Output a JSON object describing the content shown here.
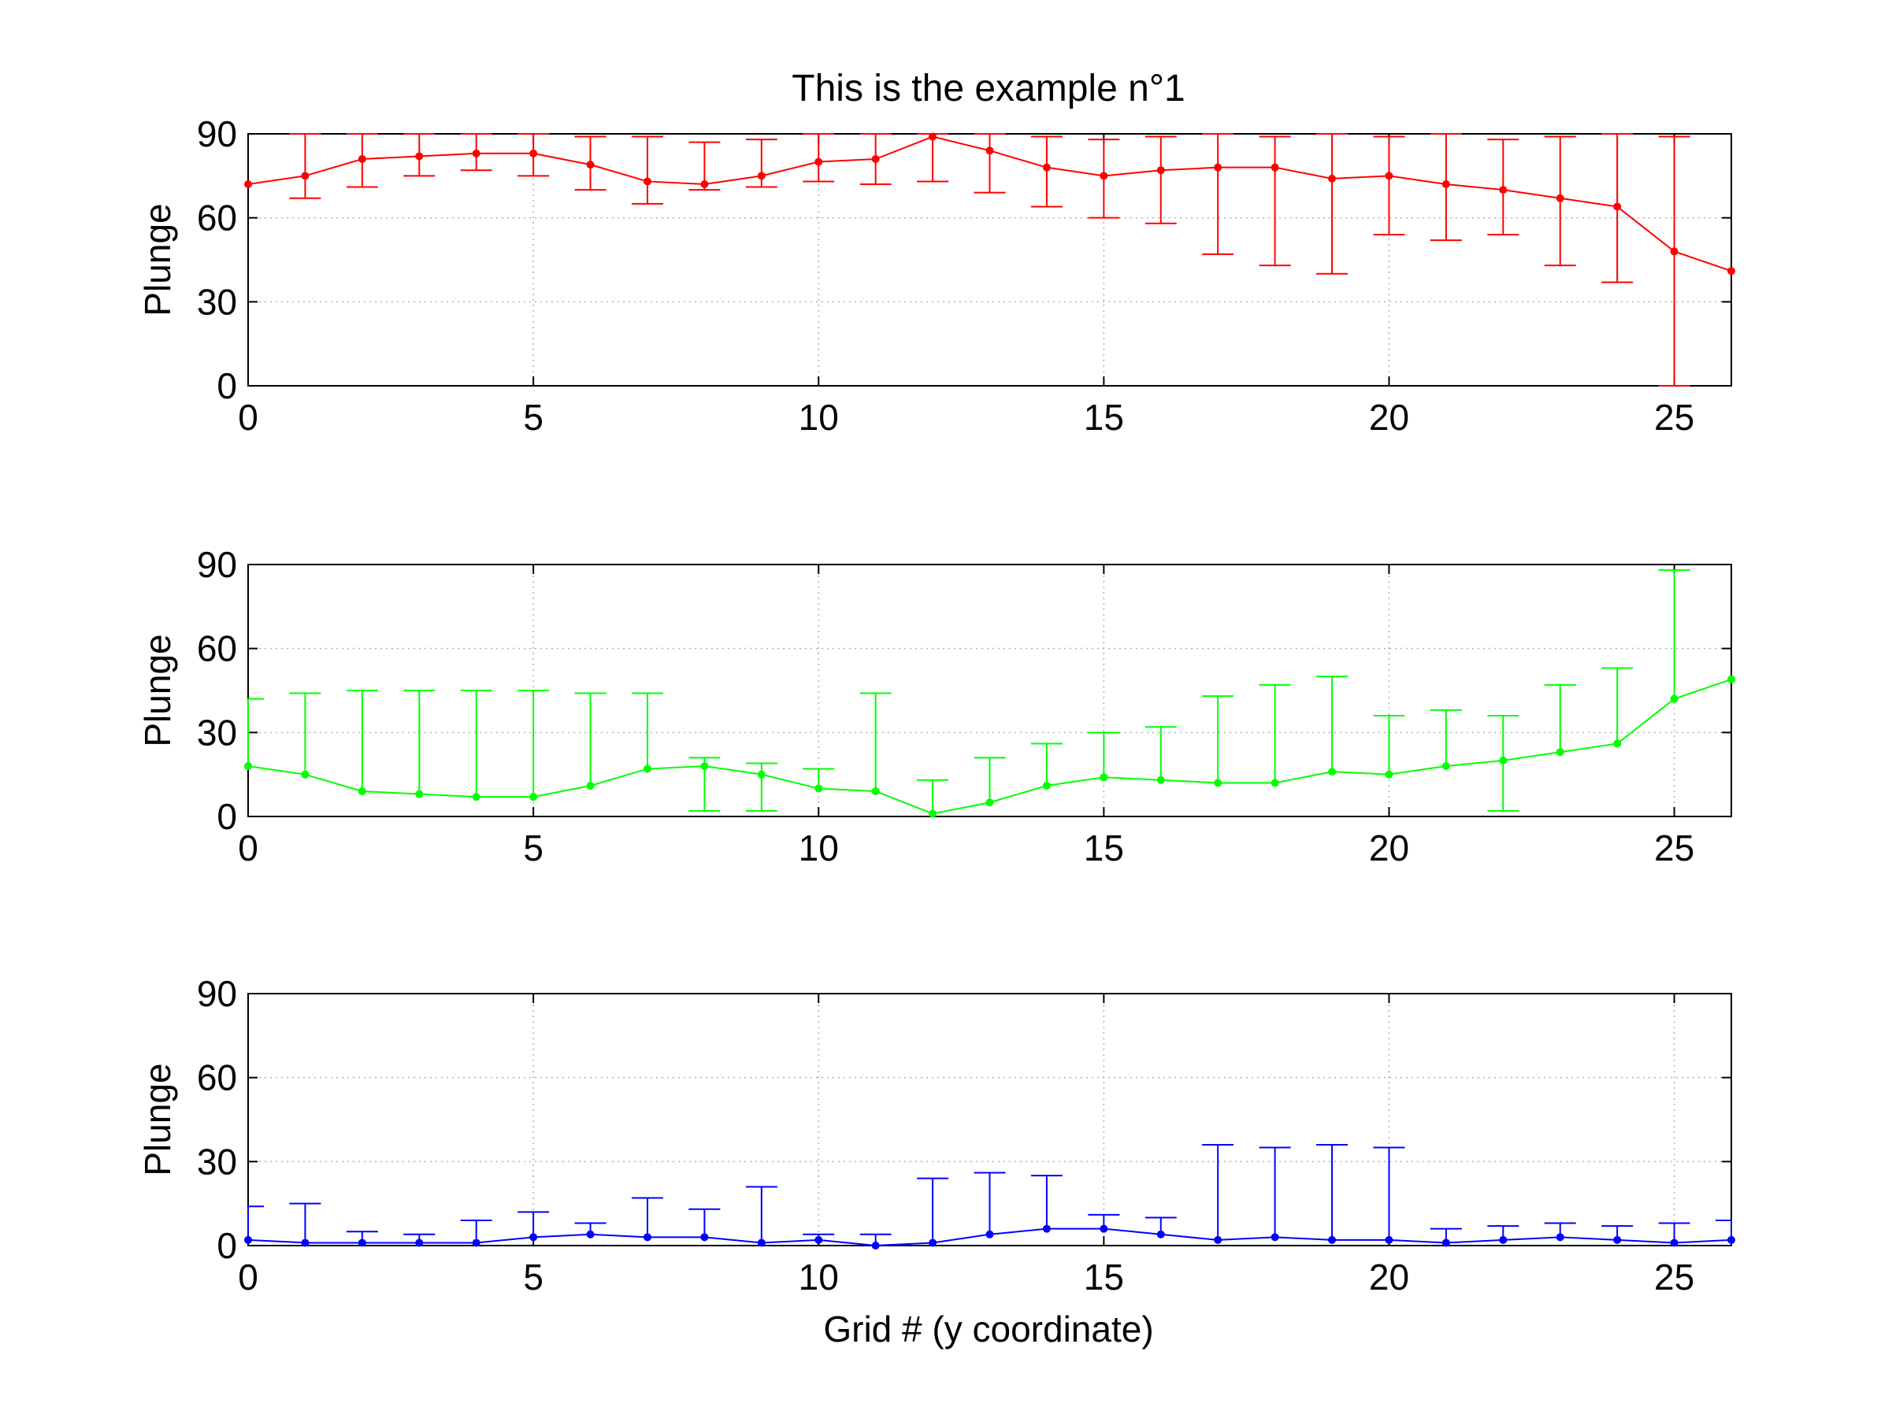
{
  "title": "This is the example n°1",
  "xlabel": "Grid # (y coordinate)",
  "chart_data": [
    {
      "type": "line",
      "ylabel": "Plunge",
      "color": "#ff0000",
      "xlim": [
        0,
        26
      ],
      "ylim": [
        0,
        90
      ],
      "xticks": [
        0,
        5,
        10,
        15,
        20,
        25
      ],
      "yticks": [
        0,
        30,
        60,
        90
      ],
      "grid": true,
      "x": [
        0,
        1,
        2,
        3,
        4,
        5,
        6,
        7,
        8,
        9,
        10,
        11,
        12,
        13,
        14,
        15,
        16,
        17,
        18,
        19,
        20,
        21,
        22,
        23,
        24,
        25,
        26
      ],
      "values": [
        72,
        75,
        81,
        82,
        83,
        83,
        79,
        73,
        72,
        75,
        80,
        81,
        89,
        84,
        78,
        75,
        77,
        78,
        78,
        74,
        75,
        72,
        70,
        67,
        64,
        48,
        41
      ],
      "err_low": [
        72,
        67,
        71,
        75,
        77,
        75,
        70,
        65,
        70,
        71,
        73,
        72,
        73,
        69,
        64,
        60,
        58,
        47,
        43,
        40,
        54,
        52,
        54,
        43,
        37,
        0,
        41
      ],
      "err_high": [
        72,
        90,
        90,
        90,
        90,
        90,
        89,
        89,
        87,
        88,
        90,
        90,
        90,
        90,
        89,
        88,
        89,
        90,
        89,
        90,
        89,
        90,
        88,
        89,
        90,
        89,
        41
      ]
    },
    {
      "type": "line",
      "ylabel": "Plunge",
      "color": "#00ff00",
      "xlim": [
        0,
        26
      ],
      "ylim": [
        0,
        90
      ],
      "xticks": [
        0,
        5,
        10,
        15,
        20,
        25
      ],
      "yticks": [
        0,
        30,
        60,
        90
      ],
      "grid": true,
      "x": [
        0,
        1,
        2,
        3,
        4,
        5,
        6,
        7,
        8,
        9,
        10,
        11,
        12,
        13,
        14,
        15,
        16,
        17,
        18,
        19,
        20,
        21,
        22,
        23,
        24,
        25,
        26
      ],
      "values": [
        18,
        15,
        9,
        8,
        7,
        7,
        11,
        17,
        18,
        15,
        10,
        9,
        1,
        5,
        11,
        14,
        13,
        12,
        12,
        16,
        15,
        18,
        20,
        23,
        26,
        42,
        49
      ],
      "err_low": [
        18,
        15,
        9,
        8,
        7,
        7,
        11,
        17,
        2,
        2,
        10,
        9,
        1,
        5,
        11,
        14,
        13,
        12,
        12,
        16,
        15,
        18,
        2,
        23,
        26,
        42,
        49
      ],
      "err_high": [
        42,
        44,
        45,
        45,
        45,
        45,
        44,
        44,
        21,
        19,
        17,
        44,
        13,
        21,
        26,
        30,
        32,
        43,
        47,
        50,
        36,
        38,
        36,
        47,
        53,
        88,
        49
      ]
    },
    {
      "type": "line",
      "ylabel": "Plunge",
      "color": "#0000ff",
      "xlim": [
        0,
        26
      ],
      "ylim": [
        0,
        90
      ],
      "xticks": [
        0,
        5,
        10,
        15,
        20,
        25
      ],
      "yticks": [
        0,
        30,
        60,
        90
      ],
      "grid": true,
      "x": [
        0,
        1,
        2,
        3,
        4,
        5,
        6,
        7,
        8,
        9,
        10,
        11,
        12,
        13,
        14,
        15,
        16,
        17,
        18,
        19,
        20,
        21,
        22,
        23,
        24,
        25,
        26
      ],
      "values": [
        2,
        1,
        1,
        1,
        1,
        3,
        4,
        3,
        3,
        1,
        2,
        0,
        1,
        4,
        6,
        6,
        4,
        2,
        3,
        2,
        2,
        1,
        2,
        3,
        2,
        1,
        2
      ],
      "err_low": [
        2,
        1,
        1,
        1,
        1,
        3,
        4,
        3,
        3,
        1,
        2,
        0,
        1,
        4,
        6,
        6,
        4,
        2,
        3,
        2,
        2,
        1,
        2,
        3,
        2,
        1,
        2
      ],
      "err_high": [
        14,
        15,
        5,
        4,
        9,
        12,
        8,
        17,
        13,
        21,
        4,
        4,
        24,
        26,
        25,
        11,
        10,
        36,
        35,
        36,
        35,
        6,
        7,
        8,
        7,
        8,
        9
      ]
    }
  ]
}
